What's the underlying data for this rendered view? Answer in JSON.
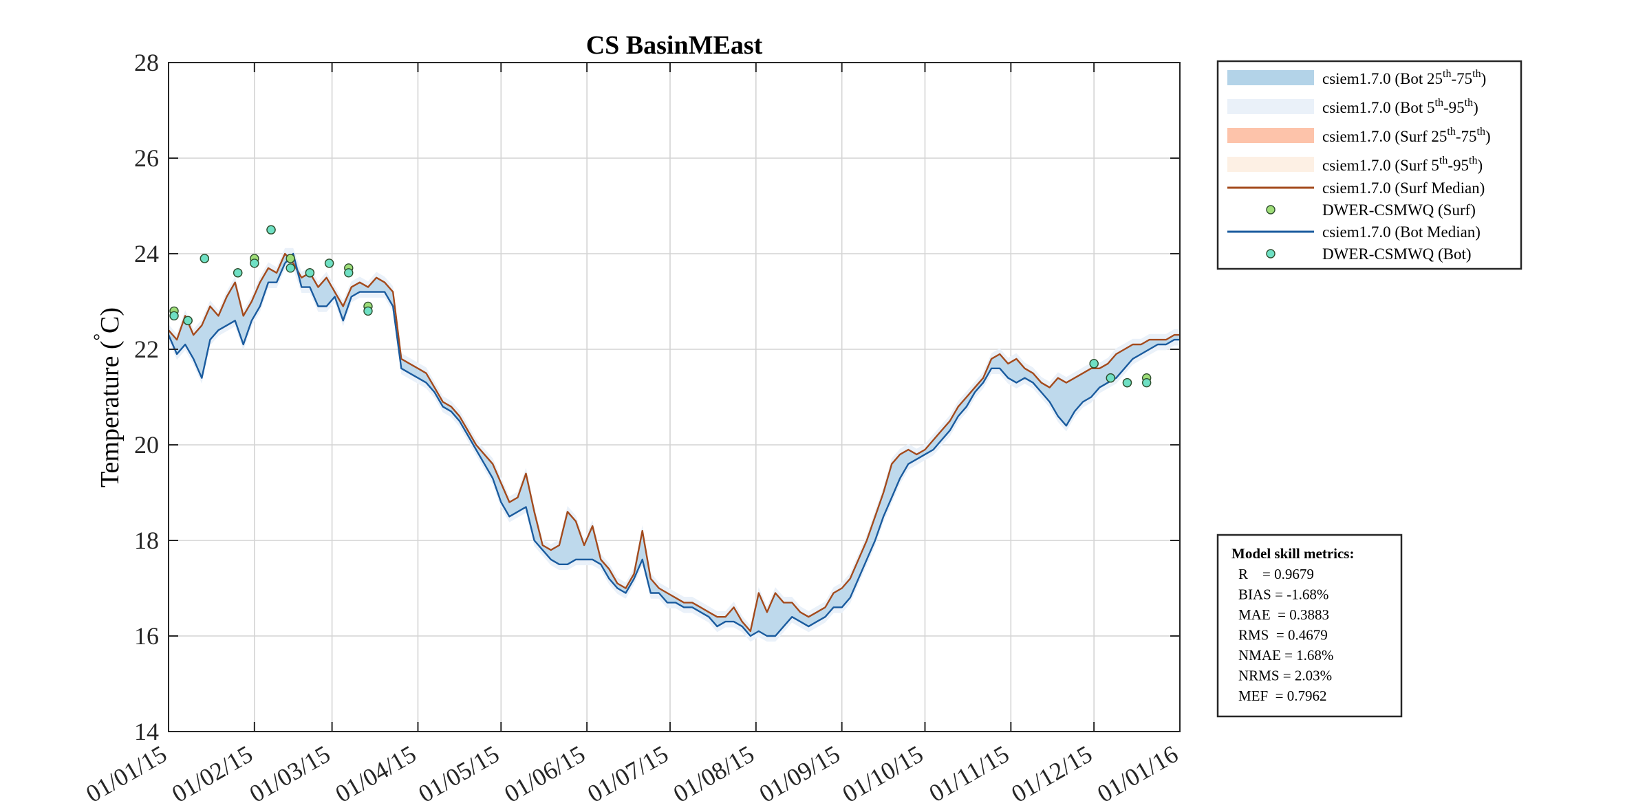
{
  "chart_data": {
    "type": "line",
    "title": "CS BasinMEast",
    "ylabel": "Temperature (°C)",
    "ylabel_parts": {
      "text": "Temperature (",
      "degree": "°",
      "unit": "C)"
    },
    "ylim": [
      14,
      28
    ],
    "yticks": [
      14,
      16,
      18,
      20,
      22,
      24,
      26,
      28
    ],
    "xlim": [
      "2015-01-01",
      "2016-01-01"
    ],
    "xtick_labels": [
      "01/01/15",
      "01/02/15",
      "01/03/15",
      "01/04/15",
      "01/05/15",
      "01/06/15",
      "01/07/15",
      "01/08/15",
      "01/09/15",
      "01/10/15",
      "01/11/15",
      "01/12/15",
      "01/01/16"
    ],
    "xtick_dates": [
      "2015-01-01",
      "2015-02-01",
      "2015-03-01",
      "2015-04-01",
      "2015-05-01",
      "2015-06-01",
      "2015-07-01",
      "2015-08-01",
      "2015-09-01",
      "2015-10-01",
      "2015-11-01",
      "2015-12-01",
      "2016-01-01"
    ],
    "grid": true,
    "legend_position": "outside top-right",
    "legend": [
      {
        "kind": "band",
        "color": "#b3d3e8",
        "text": "csiem1.7.0 (Bot 25",
        "sup1": "th",
        "mid": "-75",
        "sup2": "th",
        "end": ")"
      },
      {
        "kind": "band",
        "color": "#eaf1f9",
        "text": "csiem1.7.0 (Bot 5",
        "sup1": "th",
        "mid": "-95",
        "sup2": "th",
        "end": ")"
      },
      {
        "kind": "band",
        "color": "#fdc3aa",
        "text": "csiem1.7.0 (Surf 25",
        "sup1": "th",
        "mid": "-75",
        "sup2": "th",
        "end": ")"
      },
      {
        "kind": "band",
        "color": "#fdf0e4",
        "text": "csiem1.7.0 (Surf 5",
        "sup1": "th",
        "mid": "-95",
        "sup2": "th",
        "end": ")"
      },
      {
        "kind": "line",
        "color": "#a34a1c",
        "text": "csiem1.7.0 (Surf Median)"
      },
      {
        "kind": "marker",
        "color": "#9fdd78",
        "text": "DWER-CSMWQ (Surf)"
      },
      {
        "kind": "line",
        "color": "#1a5b9e",
        "text": "csiem1.7.0 (Bot Median)"
      },
      {
        "kind": "marker",
        "color": "#6fe0c4",
        "text": "DWER-CSMWQ (Bot)"
      }
    ],
    "series": [
      {
        "name": "csiem1.7.0 (Surf Median)",
        "color": "#a34a1c",
        "x": [
          "2015-01-01",
          "2015-01-04",
          "2015-01-07",
          "2015-01-10",
          "2015-01-13",
          "2015-01-16",
          "2015-01-19",
          "2015-01-22",
          "2015-01-25",
          "2015-01-28",
          "2015-01-31",
          "2015-02-03",
          "2015-02-06",
          "2015-02-09",
          "2015-02-12",
          "2015-02-15",
          "2015-02-18",
          "2015-02-21",
          "2015-02-24",
          "2015-02-27",
          "2015-03-02",
          "2015-03-05",
          "2015-03-08",
          "2015-03-11",
          "2015-03-14",
          "2015-03-17",
          "2015-03-20",
          "2015-03-23",
          "2015-03-26",
          "2015-03-29",
          "2015-04-01",
          "2015-04-04",
          "2015-04-07",
          "2015-04-10",
          "2015-04-13",
          "2015-04-16",
          "2015-04-19",
          "2015-04-22",
          "2015-04-25",
          "2015-04-28",
          "2015-05-01",
          "2015-05-04",
          "2015-05-07",
          "2015-05-10",
          "2015-05-13",
          "2015-05-16",
          "2015-05-19",
          "2015-05-22",
          "2015-05-25",
          "2015-05-28",
          "2015-05-31",
          "2015-06-03",
          "2015-06-06",
          "2015-06-09",
          "2015-06-12",
          "2015-06-15",
          "2015-06-18",
          "2015-06-21",
          "2015-06-24",
          "2015-06-27",
          "2015-06-30",
          "2015-07-03",
          "2015-07-06",
          "2015-07-09",
          "2015-07-12",
          "2015-07-15",
          "2015-07-18",
          "2015-07-21",
          "2015-07-24",
          "2015-07-27",
          "2015-07-30",
          "2015-08-02",
          "2015-08-05",
          "2015-08-08",
          "2015-08-11",
          "2015-08-14",
          "2015-08-17",
          "2015-08-20",
          "2015-08-23",
          "2015-08-26",
          "2015-08-29",
          "2015-09-01",
          "2015-09-04",
          "2015-09-07",
          "2015-09-10",
          "2015-09-13",
          "2015-09-16",
          "2015-09-19",
          "2015-09-22",
          "2015-09-25",
          "2015-09-28",
          "2015-10-01",
          "2015-10-04",
          "2015-10-07",
          "2015-10-10",
          "2015-10-13",
          "2015-10-16",
          "2015-10-19",
          "2015-10-22",
          "2015-10-25",
          "2015-10-28",
          "2015-10-31",
          "2015-11-03",
          "2015-11-06",
          "2015-11-09",
          "2015-11-12",
          "2015-11-15",
          "2015-11-18",
          "2015-11-21",
          "2015-11-24",
          "2015-11-27",
          "2015-11-30",
          "2015-12-03",
          "2015-12-06",
          "2015-12-09",
          "2015-12-12",
          "2015-12-15",
          "2015-12-18",
          "2015-12-21",
          "2015-12-24",
          "2015-12-27",
          "2015-12-30",
          "2016-01-01"
        ],
        "values": [
          22.4,
          22.2,
          22.7,
          22.3,
          22.5,
          22.9,
          22.7,
          23.1,
          23.4,
          22.7,
          23.0,
          23.4,
          23.7,
          23.6,
          24.0,
          23.8,
          23.5,
          23.6,
          23.3,
          23.5,
          23.2,
          22.9,
          23.3,
          23.4,
          23.3,
          23.5,
          23.4,
          23.2,
          21.8,
          21.7,
          21.6,
          21.5,
          21.2,
          20.9,
          20.8,
          20.6,
          20.3,
          20.0,
          19.8,
          19.6,
          19.2,
          18.8,
          18.9,
          19.4,
          18.6,
          17.9,
          17.8,
          17.9,
          18.6,
          18.4,
          17.9,
          18.3,
          17.6,
          17.4,
          17.1,
          17.0,
          17.3,
          18.2,
          17.2,
          17.0,
          16.9,
          16.8,
          16.7,
          16.7,
          16.6,
          16.5,
          16.4,
          16.4,
          16.6,
          16.3,
          16.1,
          16.9,
          16.5,
          16.9,
          16.7,
          16.7,
          16.5,
          16.4,
          16.5,
          16.6,
          16.9,
          17.0,
          17.2,
          17.6,
          18.0,
          18.5,
          19.0,
          19.6,
          19.8,
          19.9,
          19.8,
          19.9,
          20.1,
          20.3,
          20.5,
          20.8,
          21.0,
          21.2,
          21.4,
          21.8,
          21.9,
          21.7,
          21.8,
          21.6,
          21.5,
          21.3,
          21.2,
          21.4,
          21.3,
          21.4,
          21.5,
          21.6,
          21.6,
          21.7,
          21.9,
          22.0,
          22.1,
          22.1,
          22.2,
          22.2,
          22.2,
          22.3,
          22.3
        ]
      },
      {
        "name": "csiem1.7.0 (Bot Median)",
        "color": "#1a5b9e",
        "x": [
          "2015-01-01",
          "2015-01-04",
          "2015-01-07",
          "2015-01-10",
          "2015-01-13",
          "2015-01-16",
          "2015-01-19",
          "2015-01-22",
          "2015-01-25",
          "2015-01-28",
          "2015-01-31",
          "2015-02-03",
          "2015-02-06",
          "2015-02-09",
          "2015-02-12",
          "2015-02-15",
          "2015-02-18",
          "2015-02-21",
          "2015-02-24",
          "2015-02-27",
          "2015-03-02",
          "2015-03-05",
          "2015-03-08",
          "2015-03-11",
          "2015-03-14",
          "2015-03-17",
          "2015-03-20",
          "2015-03-23",
          "2015-03-26",
          "2015-03-29",
          "2015-04-01",
          "2015-04-04",
          "2015-04-07",
          "2015-04-10",
          "2015-04-13",
          "2015-04-16",
          "2015-04-19",
          "2015-04-22",
          "2015-04-25",
          "2015-04-28",
          "2015-05-01",
          "2015-05-04",
          "2015-05-07",
          "2015-05-10",
          "2015-05-13",
          "2015-05-16",
          "2015-05-19",
          "2015-05-22",
          "2015-05-25",
          "2015-05-28",
          "2015-05-31",
          "2015-06-03",
          "2015-06-06",
          "2015-06-09",
          "2015-06-12",
          "2015-06-15",
          "2015-06-18",
          "2015-06-21",
          "2015-06-24",
          "2015-06-27",
          "2015-06-30",
          "2015-07-03",
          "2015-07-06",
          "2015-07-09",
          "2015-07-12",
          "2015-07-15",
          "2015-07-18",
          "2015-07-21",
          "2015-07-24",
          "2015-07-27",
          "2015-07-30",
          "2015-08-02",
          "2015-08-05",
          "2015-08-08",
          "2015-08-11",
          "2015-08-14",
          "2015-08-17",
          "2015-08-20",
          "2015-08-23",
          "2015-08-26",
          "2015-08-29",
          "2015-09-01",
          "2015-09-04",
          "2015-09-07",
          "2015-09-10",
          "2015-09-13",
          "2015-09-16",
          "2015-09-19",
          "2015-09-22",
          "2015-09-25",
          "2015-09-28",
          "2015-10-01",
          "2015-10-04",
          "2015-10-07",
          "2015-10-10",
          "2015-10-13",
          "2015-10-16",
          "2015-10-19",
          "2015-10-22",
          "2015-10-25",
          "2015-10-28",
          "2015-10-31",
          "2015-11-03",
          "2015-11-06",
          "2015-11-09",
          "2015-11-12",
          "2015-11-15",
          "2015-11-18",
          "2015-11-21",
          "2015-11-24",
          "2015-11-27",
          "2015-11-30",
          "2015-12-03",
          "2015-12-06",
          "2015-12-09",
          "2015-12-12",
          "2015-12-15",
          "2015-12-18",
          "2015-12-21",
          "2015-12-24",
          "2015-12-27",
          "2015-12-30",
          "2016-01-01"
        ],
        "values": [
          22.3,
          21.9,
          22.1,
          21.8,
          21.4,
          22.2,
          22.4,
          22.5,
          22.6,
          22.1,
          22.6,
          22.9,
          23.4,
          23.4,
          23.8,
          24.0,
          23.3,
          23.3,
          22.9,
          22.9,
          23.1,
          22.6,
          23.1,
          23.2,
          23.2,
          23.2,
          23.2,
          22.9,
          21.6,
          21.5,
          21.4,
          21.3,
          21.1,
          20.8,
          20.7,
          20.5,
          20.2,
          19.9,
          19.6,
          19.3,
          18.8,
          18.5,
          18.6,
          18.7,
          18.0,
          17.8,
          17.6,
          17.5,
          17.5,
          17.6,
          17.6,
          17.6,
          17.5,
          17.2,
          17.0,
          16.9,
          17.2,
          17.6,
          16.9,
          16.9,
          16.7,
          16.7,
          16.6,
          16.6,
          16.5,
          16.4,
          16.2,
          16.3,
          16.3,
          16.2,
          16.0,
          16.1,
          16.0,
          16.0,
          16.2,
          16.4,
          16.3,
          16.2,
          16.3,
          16.4,
          16.6,
          16.6,
          16.8,
          17.2,
          17.6,
          18.0,
          18.5,
          18.9,
          19.3,
          19.6,
          19.7,
          19.8,
          19.9,
          20.1,
          20.3,
          20.6,
          20.8,
          21.1,
          21.3,
          21.6,
          21.6,
          21.4,
          21.3,
          21.4,
          21.3,
          21.1,
          20.9,
          20.6,
          20.4,
          20.7,
          20.9,
          21.0,
          21.2,
          21.3,
          21.4,
          21.6,
          21.8,
          21.9,
          22.0,
          22.1,
          22.1,
          22.2,
          22.2
        ]
      }
    ],
    "scatter_series": [
      {
        "name": "DWER-CSMWQ (Surf)",
        "color": "#9fdd78",
        "x": [
          "2015-01-03",
          "2015-01-08",
          "2015-01-14",
          "2015-01-26",
          "2015-02-01",
          "2015-02-07",
          "2015-02-14",
          "2015-02-21",
          "2015-02-28",
          "2015-03-07",
          "2015-03-14",
          "2015-12-01",
          "2015-12-07",
          "2015-12-13",
          "2015-12-20"
        ],
        "values": [
          22.8,
          22.6,
          23.9,
          23.6,
          23.9,
          24.5,
          23.9,
          23.6,
          23.8,
          23.7,
          22.9,
          21.7,
          21.4,
          21.3,
          21.4
        ]
      },
      {
        "name": "DWER-CSMWQ (Bot)",
        "color": "#6fe0c4",
        "x": [
          "2015-01-03",
          "2015-01-08",
          "2015-01-14",
          "2015-01-26",
          "2015-02-01",
          "2015-02-07",
          "2015-02-14",
          "2015-02-21",
          "2015-02-28",
          "2015-03-07",
          "2015-03-14",
          "2015-12-01",
          "2015-12-07",
          "2015-12-13",
          "2015-12-20"
        ],
        "values": [
          22.7,
          22.6,
          23.9,
          23.6,
          23.8,
          24.5,
          23.7,
          23.6,
          23.8,
          23.6,
          22.8,
          21.7,
          21.4,
          21.3,
          21.3
        ]
      }
    ],
    "metrics": {
      "title": "Model skill metrics:",
      "lines": [
        "R    = 0.9679",
        "BIAS = -1.68%",
        "MAE  = 0.3883",
        "RMS  = 0.4679",
        "NMAE = 1.68%",
        "NRMS = 2.03%",
        "MEF  = 0.7962"
      ]
    }
  }
}
